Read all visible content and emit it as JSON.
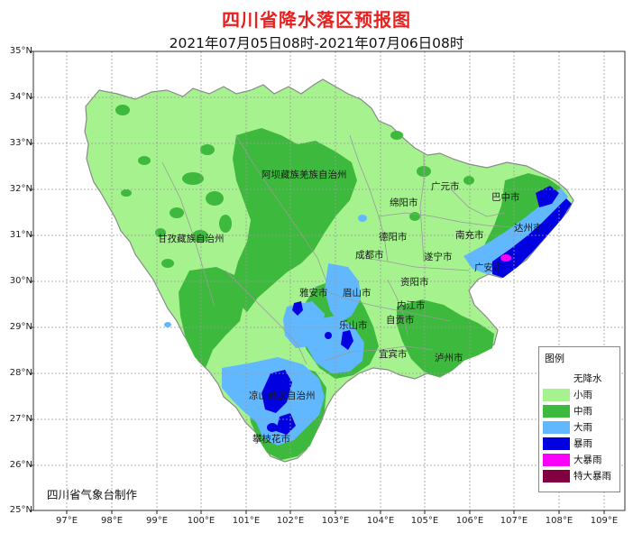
{
  "header": {
    "title": "四川省降水落区预报图",
    "subtitle": "2021年07月05日08时-2021年07月06日08时"
  },
  "axes": {
    "lat_labels": [
      "35°N",
      "34°N",
      "33°N",
      "32°N",
      "31°N",
      "30°N",
      "29°N",
      "28°N",
      "27°N",
      "26°N",
      "25°N"
    ],
    "lon_labels": [
      "97°E",
      "98°E",
      "99°E",
      "100°E",
      "101°E",
      "102°E",
      "103°E",
      "104°E",
      "105°E",
      "106°E",
      "107°E",
      "108°E",
      "109°E"
    ]
  },
  "regions": {
    "gannan": "甘孜藏族自治州",
    "aba": "阿坝藏族羌族自治州",
    "liangshan": "凉山彝族自治州"
  },
  "cities": {
    "guangyuan": "广元市",
    "bazhong": "巴中市",
    "mianyang": "绵阳市",
    "dazhou": "达州市",
    "deyang": "德阳市",
    "nanchong": "南充市",
    "chengdu": "成都市",
    "suining": "遂宁市",
    "guangan": "广安市",
    "yaan": "雅安市",
    "meishan": "眉山市",
    "ziyang": "资阳市",
    "neijiang": "内江市",
    "leshan": "乐山市",
    "zigong": "自贡市",
    "yibin": "宜宾市",
    "luzhou": "泸州市",
    "panzhihua": "攀枝花市"
  },
  "legend": {
    "title": "图例",
    "items": [
      {
        "label": "无降水",
        "color": "#ffffff"
      },
      {
        "label": "小雨",
        "color": "#a6f28f"
      },
      {
        "label": "中雨",
        "color": "#3dba3d"
      },
      {
        "label": "大雨",
        "color": "#61b8ff"
      },
      {
        "label": "暴雨",
        "color": "#0000e1"
      },
      {
        "label": "大暴雨",
        "color": "#fa00fa"
      },
      {
        "label": "特大暴雨",
        "color": "#800040"
      }
    ]
  },
  "credit": "四川省气象台制作"
}
